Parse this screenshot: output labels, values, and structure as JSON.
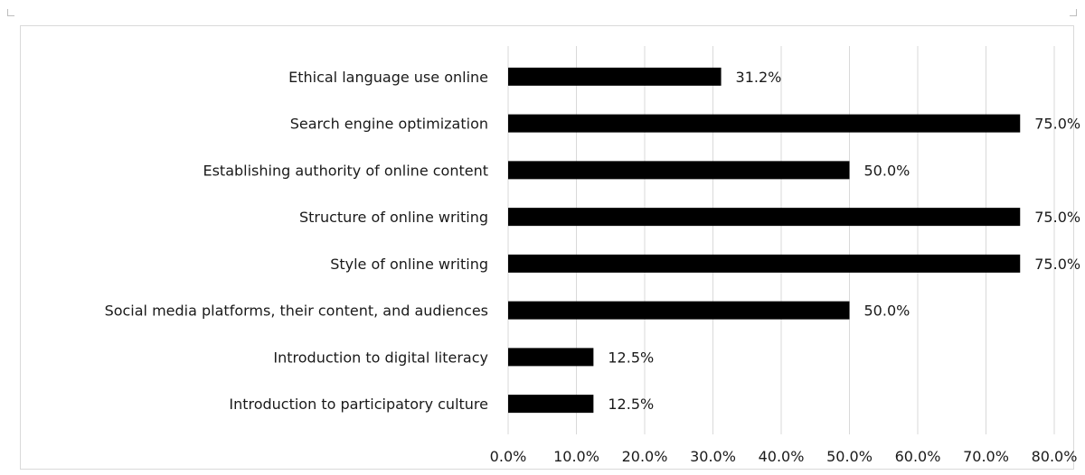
{
  "chart_data": {
    "type": "bar",
    "orientation": "horizontal",
    "title": "",
    "xlabel": "",
    "ylabel": "",
    "categories": [
      "Ethical language use online",
      "Search engine optimization",
      "Establishing authority of online content",
      "Structure of online writing",
      "Style of online writing",
      "Social media platforms, their content, and audiences",
      "Introduction to digital literacy",
      "Introduction to participatory culture"
    ],
    "values": [
      31.2,
      75.0,
      50.0,
      75.0,
      75.0,
      50.0,
      12.5,
      12.5
    ],
    "data_labels": [
      "31.2%",
      "75.0%",
      "50.0%",
      "75.0%",
      "75.0%",
      "50.0%",
      "12.5%",
      "12.5%"
    ],
    "xlim": [
      0,
      80
    ],
    "x_ticks": [
      0,
      10,
      20,
      30,
      40,
      50,
      60,
      70,
      80
    ],
    "x_tick_labels": [
      "0.0%",
      "10.0%",
      "20.0%",
      "30.0%",
      "40.0%",
      "50.0%",
      "60.0%",
      "70.0%",
      "80.0%"
    ],
    "bar_color": "#000000",
    "grid": true,
    "grid_color": "#d9d9d9",
    "legend": "none"
  }
}
